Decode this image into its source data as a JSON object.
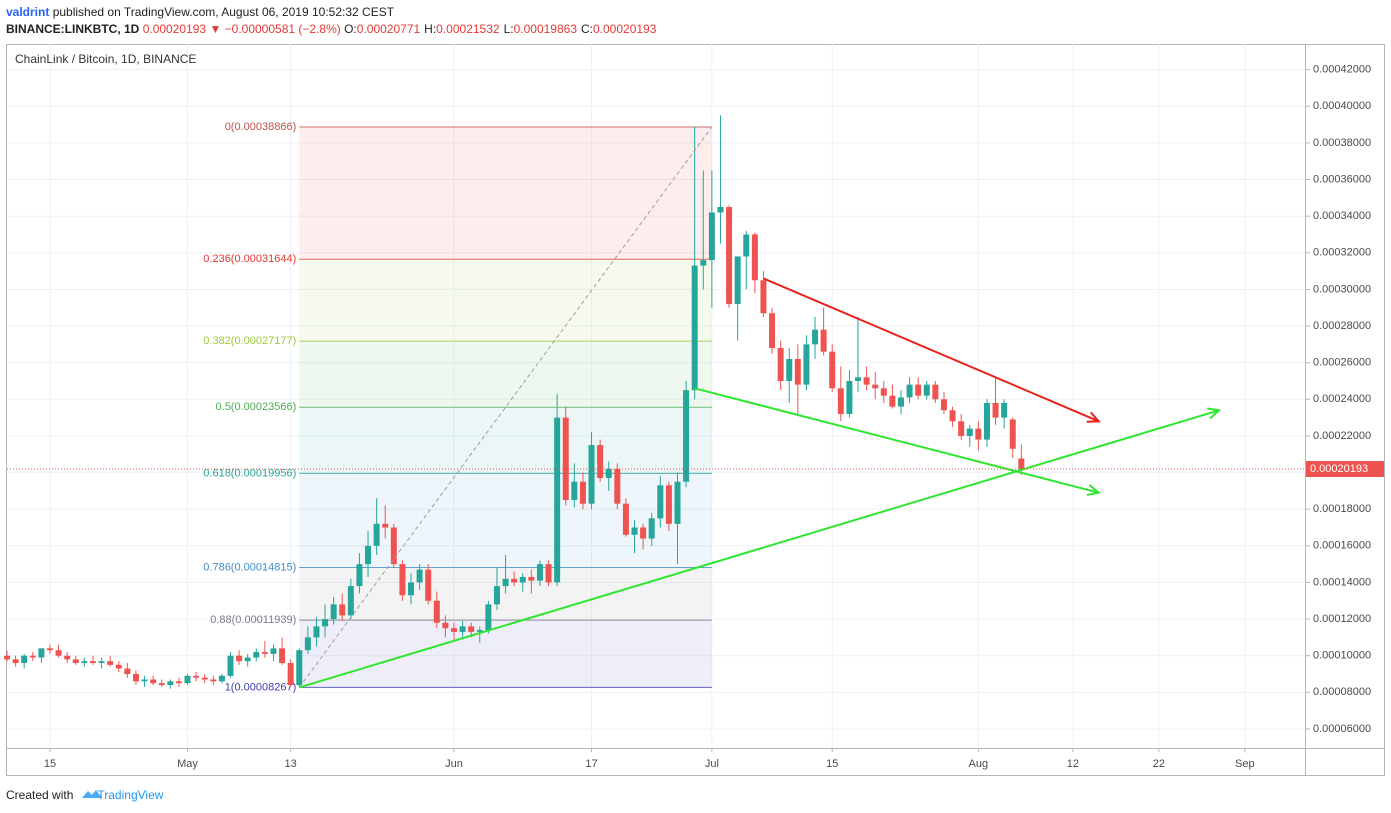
{
  "header": {
    "author": "valdrint",
    "published": "published on TradingView.com, August 06, 2019 10:52:32 CEST",
    "symbol": "BINANCE:LINKBTC, 1D",
    "price": "0.00020193",
    "change": "▼ −0.00000581 (−2.8%)",
    "ohlc": [
      {
        "key": "O:",
        "value": "0.00020771"
      },
      {
        "key": "H:",
        "value": "0.00021532"
      },
      {
        "key": "L:",
        "value": "0.00019863"
      },
      {
        "key": "C:",
        "value": "0.00020193"
      }
    ]
  },
  "footer": {
    "created": "Created with",
    "brand": "TradingView"
  },
  "chart_data": {
    "type": "candlestick",
    "title": "ChainLink / Bitcoin, 1D, BINANCE",
    "up_color": "#26a69a",
    "down_color": "#ef5350",
    "grid": true,
    "xlim": [
      "Apr 10",
      "Sep 8"
    ],
    "xticks": [
      {
        "value": "Apr 15",
        "label": "15"
      },
      {
        "value": "May 1",
        "label": "May"
      },
      {
        "value": "May 13",
        "label": "13"
      },
      {
        "value": "Jun 1",
        "label": "Jun"
      },
      {
        "value": "Jun 17",
        "label": "17"
      },
      {
        "value": "Jul 1",
        "label": "Jul"
      },
      {
        "value": "Jul 15",
        "label": "15"
      },
      {
        "value": "Aug 1",
        "label": "Aug"
      },
      {
        "value": "Aug 12",
        "label": "12"
      },
      {
        "value": "Aug 22",
        "label": "22"
      },
      {
        "value": "Sep 1",
        "label": "Sep"
      }
    ],
    "ylim": [
      4.96e-05,
      0.000434
    ],
    "yticks": [
      {
        "value": 6e-05,
        "label": "0.00006000"
      },
      {
        "value": 8e-05,
        "label": "0.00008000"
      },
      {
        "value": 0.0001,
        "label": "0.00010000"
      },
      {
        "value": 0.00012,
        "label": "0.00012000"
      },
      {
        "value": 0.00014,
        "label": "0.00014000"
      },
      {
        "value": 0.00016,
        "label": "0.00016000"
      },
      {
        "value": 0.00018,
        "label": "0.00018000"
      },
      {
        "value": 0.0002,
        "label": "0.00020000"
      },
      {
        "value": 0.00022,
        "label": "0.00022000"
      },
      {
        "value": 0.00024,
        "label": "0.00024000"
      },
      {
        "value": 0.00026,
        "label": "0.00026000"
      },
      {
        "value": 0.00028,
        "label": "0.00028000"
      },
      {
        "value": 0.0003,
        "label": "0.00030000"
      },
      {
        "value": 0.00032,
        "label": "0.00032000"
      },
      {
        "value": 0.00034,
        "label": "0.00034000"
      },
      {
        "value": 0.00036,
        "label": "0.00036000"
      },
      {
        "value": 0.00038,
        "label": "0.00038000"
      },
      {
        "value": 0.0004,
        "label": "0.00040000"
      },
      {
        "value": 0.00042,
        "label": "0.00042000"
      }
    ],
    "last_price": {
      "value": 0.00020193,
      "label": "0.00020193",
      "color": "#ef5350"
    },
    "x": [
      "Apr 10",
      "Apr 11",
      "Apr 12",
      "Apr 13",
      "Apr 14",
      "Apr 15",
      "Apr 16",
      "Apr 17",
      "Apr 18",
      "Apr 19",
      "Apr 20",
      "Apr 21",
      "Apr 22",
      "Apr 23",
      "Apr 24",
      "Apr 25",
      "Apr 26",
      "Apr 27",
      "Apr 28",
      "Apr 29",
      "Apr 30",
      "May 1",
      "May 2",
      "May 3",
      "May 4",
      "May 5",
      "May 6",
      "May 7",
      "May 8",
      "May 9",
      "May 10",
      "May 11",
      "May 12",
      "May 13",
      "May 14",
      "May 15",
      "May 16",
      "May 17",
      "May 18",
      "May 19",
      "May 20",
      "May 21",
      "May 22",
      "May 23",
      "May 24",
      "May 25",
      "May 26",
      "May 27",
      "May 28",
      "May 29",
      "May 30",
      "May 31",
      "Jun 1",
      "Jun 2",
      "Jun 3",
      "Jun 4",
      "Jun 5",
      "Jun 6",
      "Jun 7",
      "Jun 8",
      "Jun 9",
      "Jun 10",
      "Jun 11",
      "Jun 12",
      "Jun 13",
      "Jun 14",
      "Jun 15",
      "Jun 16",
      "Jun 17",
      "Jun 18",
      "Jun 19",
      "Jun 20",
      "Jun 21",
      "Jun 22",
      "Jun 23",
      "Jun 24",
      "Jun 25",
      "Jun 26",
      "Jun 27",
      "Jun 28",
      "Jun 29",
      "Jun 30",
      "Jul 1",
      "Jul 2",
      "Jul 3",
      "Jul 4",
      "Jul 5",
      "Jul 6",
      "Jul 7",
      "Jul 8",
      "Jul 9",
      "Jul 10",
      "Jul 11",
      "Jul 12",
      "Jul 13",
      "Jul 14",
      "Jul 15",
      "Jul 16",
      "Jul 17",
      "Jul 18",
      "Jul 19",
      "Jul 20",
      "Jul 21",
      "Jul 22",
      "Jul 23",
      "Jul 24",
      "Jul 25",
      "Jul 26",
      "Jul 27",
      "Jul 28",
      "Jul 29",
      "Jul 30",
      "Jul 31",
      "Aug 1",
      "Aug 2",
      "Aug 3",
      "Aug 4",
      "Aug 5",
      "Aug 6"
    ],
    "ohlc": [
      [
        0.0001,
        0.000103,
        9.7e-05,
        9.8e-05
      ],
      [
        9.8e-05,
        0.0001,
        9.4e-05,
        9.6e-05
      ],
      [
        9.6e-05,
        0.000101,
        9.3e-05,
        0.0001
      ],
      [
        0.0001,
        0.000102,
        9.7e-05,
        9.9e-05
      ],
      [
        9.9e-05,
        0.000104,
        9.6e-05,
        0.000104
      ],
      [
        0.000104,
        0.000106,
        0.000101,
        0.000103
      ],
      [
        0.000103,
        0.000106,
        9.9e-05,
        0.0001
      ],
      [
        0.0001,
        0.000102,
        9.6e-05,
        9.8e-05
      ],
      [
        9.8e-05,
        0.0001,
        9.5e-05,
        9.6e-05
      ],
      [
        9.6e-05,
        9.9e-05,
        9.4e-05,
        9.7e-05
      ],
      [
        9.7e-05,
        0.0001,
        9.5e-05,
        9.6e-05
      ],
      [
        9.6e-05,
        9.9e-05,
        9.3e-05,
        9.7e-05
      ],
      [
        9.7e-05,
        0.0001,
        9.4e-05,
        9.5e-05
      ],
      [
        9.5e-05,
        9.7e-05,
        9.1e-05,
        9.3e-05
      ],
      [
        9.3e-05,
        9.6e-05,
        8.8e-05,
        9e-05
      ],
      [
        9e-05,
        9.2e-05,
        8.4e-05,
        8.6e-05
      ],
      [
        8.6e-05,
        8.9e-05,
        8.3e-05,
        8.7e-05
      ],
      [
        8.7e-05,
        8.9e-05,
        8.4e-05,
        8.5e-05
      ],
      [
        8.5e-05,
        8.7e-05,
        8.3e-05,
        8.4e-05
      ],
      [
        8.4e-05,
        8.7e-05,
        8.2e-05,
        8.6e-05
      ],
      [
        8.6e-05,
        8.8e-05,
        8.3e-05,
        8.5e-05
      ],
      [
        8.5e-05,
        9e-05,
        8.4e-05,
        8.9e-05
      ],
      [
        8.9e-05,
        9.1e-05,
        8.6e-05,
        8.8e-05
      ],
      [
        8.8e-05,
        9e-05,
        8.5e-05,
        8.7e-05
      ],
      [
        8.7e-05,
        8.9e-05,
        8.4e-05,
        8.6e-05
      ],
      [
        8.6e-05,
        9e-05,
        8.5e-05,
        8.9e-05
      ],
      [
        8.9e-05,
        0.000102,
        8.8e-05,
        0.0001
      ],
      [
        0.0001,
        0.000103,
        9.5e-05,
        9.7e-05
      ],
      [
        9.7e-05,
        0.000101,
        9.4e-05,
        9.9e-05
      ],
      [
        9.9e-05,
        0.000104,
        9.7e-05,
        0.000102
      ],
      [
        0.000102,
        0.000108,
        9.9e-05,
        0.000101
      ],
      [
        0.000101,
        0.000106,
        9.7e-05,
        0.000104
      ],
      [
        0.000104,
        0.00011,
        9.5e-05,
        9.6e-05
      ],
      [
        9.6e-05,
        9.8e-05,
        8.3e-05,
        8.4e-05
      ],
      [
        8.4e-05,
        0.000104,
        8.3e-05,
        0.000103
      ],
      [
        0.000103,
        0.000116,
        0.000101,
        0.00011
      ],
      [
        0.00011,
        0.000121,
        0.000105,
        0.000116
      ],
      [
        0.000116,
        0.000128,
        0.00011,
        0.00012
      ],
      [
        0.00012,
        0.000132,
        0.000117,
        0.000128
      ],
      [
        0.000128,
        0.000134,
        0.000119,
        0.000122
      ],
      [
        0.000122,
        0.000142,
        0.00012,
        0.000138
      ],
      [
        0.000138,
        0.000156,
        0.000134,
        0.00015
      ],
      [
        0.00015,
        0.000168,
        0.000143,
        0.00016
      ],
      [
        0.00016,
        0.000186,
        0.000155,
        0.000172
      ],
      [
        0.000172,
        0.000182,
        0.000164,
        0.00017
      ],
      [
        0.00017,
        0.000172,
        0.000148,
        0.00015
      ],
      [
        0.00015,
        0.000152,
        0.00013,
        0.000133
      ],
      [
        0.000133,
        0.000145,
        0.000128,
        0.00014
      ],
      [
        0.00014,
        0.00015,
        0.000136,
        0.000147
      ],
      [
        0.000147,
        0.00015,
        0.000128,
        0.00013
      ],
      [
        0.00013,
        0.000135,
        0.000115,
        0.000118
      ],
      [
        0.000118,
        0.000122,
        0.00011,
        0.000115
      ],
      [
        0.000115,
        0.000118,
        0.000108,
        0.000113
      ],
      [
        0.000113,
        0.000119,
        0.00011,
        0.000116
      ],
      [
        0.000116,
        0.000118,
        0.00011,
        0.000113
      ],
      [
        0.000113,
        0.000116,
        0.000107,
        0.000114
      ],
      [
        0.000114,
        0.00013,
        0.000112,
        0.000128
      ],
      [
        0.000128,
        0.000148,
        0.000125,
        0.000138
      ],
      [
        0.000138,
        0.000155,
        0.000134,
        0.000142
      ],
      [
        0.000142,
        0.000146,
        0.000138,
        0.00014
      ],
      [
        0.00014,
        0.000145,
        0.000135,
        0.000143
      ],
      [
        0.000143,
        0.000147,
        0.000134,
        0.000141
      ],
      [
        0.000141,
        0.000152,
        0.000138,
        0.00015
      ],
      [
        0.00015,
        0.000152,
        0.000138,
        0.00014
      ],
      [
        0.00014,
        0.000243,
        0.000138,
        0.00023
      ],
      [
        0.00023,
        0.000236,
        0.000182,
        0.000185
      ],
      [
        0.000185,
        0.000205,
        0.000181,
        0.000195
      ],
      [
        0.000195,
        0.0002,
        0.00018,
        0.000183
      ],
      [
        0.000183,
        0.000222,
        0.00018,
        0.000215
      ],
      [
        0.000215,
        0.000218,
        0.000195,
        0.000197
      ],
      [
        0.000197,
        0.000206,
        0.00019,
        0.000202
      ],
      [
        0.000202,
        0.000205,
        0.00018,
        0.000183
      ],
      [
        0.000183,
        0.000186,
        0.000165,
        0.000166
      ],
      [
        0.000166,
        0.000174,
        0.000156,
        0.00017
      ],
      [
        0.00017,
        0.000172,
        0.000158,
        0.000164
      ],
      [
        0.000164,
        0.000178,
        0.00016,
        0.000175
      ],
      [
        0.000175,
        0.000198,
        0.00017,
        0.000193
      ],
      [
        0.000193,
        0.000195,
        0.000168,
        0.000172
      ],
      [
        0.000172,
        0.0002,
        0.00015,
        0.000195
      ],
      [
        0.000195,
        0.00025,
        0.000192,
        0.000245
      ],
      [
        0.000245,
        0.000389,
        0.00024,
        0.000313
      ],
      [
        0.000313,
        0.000365,
        0.0003,
        0.000316
      ],
      [
        0.000316,
        0.000365,
        0.00029,
        0.000342
      ],
      [
        0.000342,
        0.000395,
        0.000325,
        0.000345
      ],
      [
        0.000345,
        0.000346,
        0.00029,
        0.000292
      ],
      [
        0.000292,
        0.000318,
        0.000272,
        0.000318
      ],
      [
        0.000318,
        0.000332,
        0.0003,
        0.00033
      ],
      [
        0.00033,
        0.000331,
        0.000298,
        0.000305
      ],
      [
        0.000305,
        0.00031,
        0.000285,
        0.000287
      ],
      [
        0.000287,
        0.00029,
        0.000265,
        0.000268
      ],
      [
        0.000268,
        0.000272,
        0.000245,
        0.00025
      ],
      [
        0.00025,
        0.000268,
        0.000238,
        0.000262
      ],
      [
        0.000262,
        0.00027,
        0.000232,
        0.000248
      ],
      [
        0.000248,
        0.000275,
        0.000245,
        0.00027
      ],
      [
        0.00027,
        0.000285,
        0.000262,
        0.000278
      ],
      [
        0.000278,
        0.00029,
        0.000264,
        0.000266
      ],
      [
        0.000266,
        0.00027,
        0.000244,
        0.000246
      ],
      [
        0.000246,
        0.000258,
        0.000228,
        0.000232
      ],
      [
        0.000232,
        0.000256,
        0.00023,
        0.00025
      ],
      [
        0.00025,
        0.000285,
        0.000244,
        0.000252
      ],
      [
        0.000252,
        0.000258,
        0.000245,
        0.000248
      ],
      [
        0.000248,
        0.000255,
        0.00024,
        0.000246
      ],
      [
        0.000246,
        0.00025,
        0.000238,
        0.000242
      ],
      [
        0.000242,
        0.000248,
        0.000235,
        0.000236
      ],
      [
        0.000236,
        0.000245,
        0.000232,
        0.000241
      ],
      [
        0.000241,
        0.000252,
        0.000238,
        0.000248
      ],
      [
        0.000248,
        0.000252,
        0.00024,
        0.000242
      ],
      [
        0.000242,
        0.00025,
        0.00024,
        0.000248
      ],
      [
        0.000248,
        0.00025,
        0.000238,
        0.00024
      ],
      [
        0.00024,
        0.000244,
        0.000232,
        0.000234
      ],
      [
        0.000234,
        0.000236,
        0.000225,
        0.000228
      ],
      [
        0.000228,
        0.000232,
        0.000218,
        0.00022
      ],
      [
        0.00022,
        0.000226,
        0.000214,
        0.000224
      ],
      [
        0.000224,
        0.000228,
        0.000212,
        0.000218
      ],
      [
        0.000218,
        0.00024,
        0.000214,
        0.000238
      ],
      [
        0.000238,
        0.000252,
        0.000226,
        0.00023
      ],
      [
        0.00023,
        0.00024,
        0.000224,
        0.000238
      ],
      [
        0.000229,
        0.00023,
        0.000208,
        0.000213
      ],
      [
        0.00020771,
        0.00021532,
        0.00019863,
        0.00020193
      ]
    ],
    "fibonacci": {
      "x": [
        "May 14",
        "Jul 1"
      ],
      "levels": [
        {
          "label": "0(0.00038866)",
          "value": 0.00038866,
          "color": "#c0504d"
        },
        {
          "label": "0.236(0.00031644)",
          "value": 0.00031644,
          "color": "#e53935"
        },
        {
          "label": "0.382(0.00027177)",
          "value": 0.00027177,
          "color": "#9ccc38"
        },
        {
          "label": "0.5(0.00023566)",
          "value": 0.00023566,
          "color": "#4caf50"
        },
        {
          "label": "0.618(0.00019956)",
          "value": 0.00019956,
          "color": "#26a69a"
        },
        {
          "label": "0.786(0.00014815)",
          "value": 0.00014815,
          "color": "#3d8fd0"
        },
        {
          "label": "0.88(0.00011939)",
          "value": 0.00011939,
          "color": "#787b86"
        },
        {
          "label": "1(0.00008267)",
          "value": 8.267e-05,
          "color": "#3f3fb0"
        }
      ]
    },
    "trend_lines": [
      {
        "color": "#9e9e9e",
        "dashed": true,
        "arrow": false,
        "points": [
          [
            "May 14",
            8.267e-05
          ],
          [
            "Jul 1",
            0.00038866
          ]
        ]
      },
      {
        "color": "#2ee62e",
        "dashed": false,
        "arrow": true,
        "points": [
          [
            "May 14",
            8.267e-05
          ],
          [
            "Aug 29",
            0.000234
          ]
        ]
      },
      {
        "color": "#2ee62e",
        "dashed": false,
        "arrow": true,
        "points": [
          [
            "Jun 29",
            0.000246
          ],
          [
            "Aug 15",
            0.000189
          ]
        ]
      },
      {
        "color": "#e8231c",
        "dashed": false,
        "arrow": true,
        "points": [
          [
            "Jul 7",
            0.000306
          ],
          [
            "Aug 15",
            0.000228
          ]
        ]
      }
    ]
  }
}
